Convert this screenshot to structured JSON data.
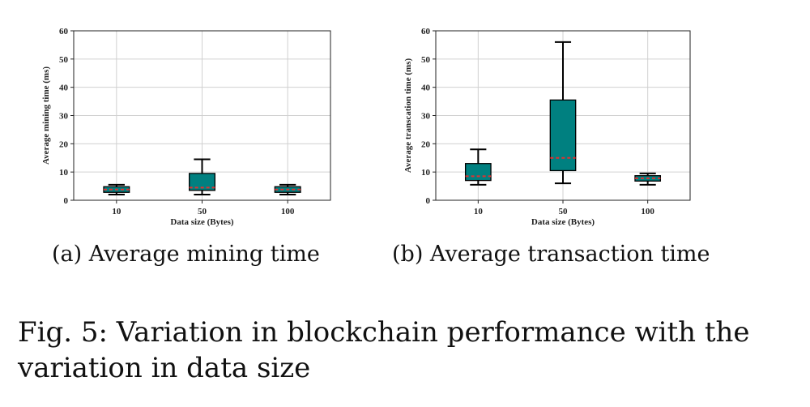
{
  "chart_data": [
    {
      "type": "box",
      "xlabel": "Data size (Bytes)",
      "ylabel": "Average mining time (ms)",
      "categories": [
        "10",
        "50",
        "100"
      ],
      "ylim": [
        0,
        60
      ],
      "yticks": [
        0,
        10,
        20,
        30,
        40,
        50,
        60
      ],
      "grid": true,
      "box_color": "#008080",
      "median_color": "#e03030",
      "boxes": [
        {
          "category": "10",
          "whisker_low": 2,
          "q1": 2.8,
          "median": 3.8,
          "q3": 4.8,
          "whisker_high": 5.5
        },
        {
          "category": "50",
          "whisker_low": 2,
          "q1": 3.5,
          "median": 4.5,
          "q3": 9.5,
          "whisker_high": 14.5
        },
        {
          "category": "100",
          "whisker_low": 2,
          "q1": 2.8,
          "median": 3.8,
          "q3": 4.8,
          "whisker_high": 5.5
        }
      ]
    },
    {
      "type": "box",
      "xlabel": "Data size (Bytes)",
      "ylabel": "Average transcation time (ms)",
      "categories": [
        "10",
        "50",
        "100"
      ],
      "ylim": [
        0,
        60
      ],
      "yticks": [
        0,
        10,
        20,
        30,
        40,
        50,
        60
      ],
      "grid": true,
      "box_color": "#008080",
      "median_color": "#e03030",
      "boxes": [
        {
          "category": "10",
          "whisker_low": 5.5,
          "q1": 7,
          "median": 8.5,
          "q3": 13,
          "whisker_high": 18
        },
        {
          "category": "50",
          "whisker_low": 6,
          "q1": 10.5,
          "median": 15,
          "q3": 35.5,
          "whisker_high": 56
        },
        {
          "category": "100",
          "whisker_low": 5.5,
          "q1": 6.8,
          "median": 7.8,
          "q3": 8.7,
          "whisker_high": 9.5
        }
      ]
    }
  ],
  "captions": {
    "a": "(a)  Average mining time",
    "b": "(b)  Average transaction time",
    "figure": "Fig. 5: Variation in blockchain performance with the variation in data size"
  }
}
